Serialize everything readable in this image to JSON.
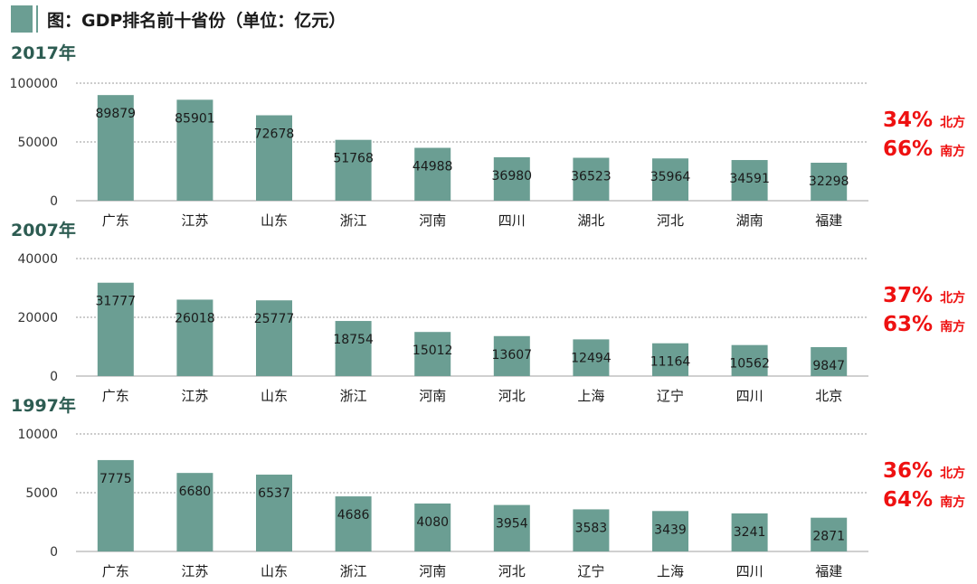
{
  "title": "图：GDP排名前十省份（单位：亿元）",
  "colors": {
    "bar": "#6b9e93",
    "accent": "#ee1111",
    "year": "#2d5c52"
  },
  "chart_data": [
    {
      "type": "bar",
      "year_label": "2017年",
      "categories": [
        "广东",
        "江苏",
        "山东",
        "浙江",
        "河南",
        "四川",
        "湖北",
        "河北",
        "湖南",
        "福建"
      ],
      "values": [
        89879,
        85901,
        72678,
        51768,
        44988,
        36980,
        36523,
        35964,
        34591,
        32298
      ],
      "ylim": [
        0,
        100000
      ],
      "yticks": [
        0,
        50000,
        100000
      ],
      "grid": true,
      "shares": [
        {
          "pct": "34%",
          "label": "北方"
        },
        {
          "pct": "66%",
          "label": "南方"
        }
      ]
    },
    {
      "type": "bar",
      "year_label": "2007年",
      "categories": [
        "广东",
        "江苏",
        "山东",
        "浙江",
        "河南",
        "河北",
        "上海",
        "辽宁",
        "四川",
        "北京"
      ],
      "values": [
        31777,
        26018,
        25777,
        18754,
        15012,
        13607,
        12494,
        11164,
        10562,
        9847
      ],
      "ylim": [
        0,
        40000
      ],
      "yticks": [
        0,
        20000,
        40000
      ],
      "grid": true,
      "shares": [
        {
          "pct": "37%",
          "label": "北方"
        },
        {
          "pct": "63%",
          "label": "南方"
        }
      ]
    },
    {
      "type": "bar",
      "year_label": "1997年",
      "categories": [
        "广东",
        "江苏",
        "山东",
        "浙江",
        "河南",
        "河北",
        "辽宁",
        "上海",
        "四川",
        "福建"
      ],
      "values": [
        7775,
        6680,
        6537,
        4686,
        4080,
        3954,
        3583,
        3439,
        3241,
        2871
      ],
      "ylim": [
        0,
        10000
      ],
      "yticks": [
        0,
        5000,
        10000
      ],
      "grid": true,
      "shares": [
        {
          "pct": "36%",
          "label": "北方"
        },
        {
          "pct": "64%",
          "label": "南方"
        }
      ]
    }
  ]
}
